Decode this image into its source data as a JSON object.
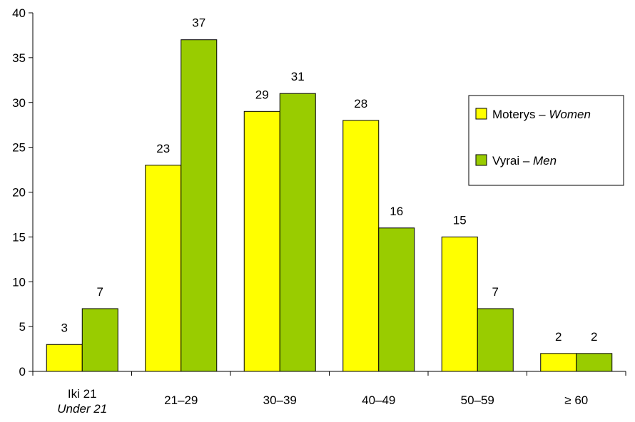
{
  "chart_data": {
    "type": "bar",
    "categories": [
      {
        "label": "Iki 21",
        "sublabel": "Under 21"
      },
      {
        "label": "21–29",
        "sublabel": ""
      },
      {
        "label": "30–39",
        "sublabel": ""
      },
      {
        "label": "40–49",
        "sublabel": ""
      },
      {
        "label": "50–59",
        "sublabel": ""
      },
      {
        "label": "≥ 60",
        "sublabel": ""
      }
    ],
    "series": [
      {
        "name": "Moterys",
        "name_en": "Women",
        "color": "#ffff00",
        "values": [
          3,
          23,
          29,
          28,
          15,
          2
        ]
      },
      {
        "name": "Vyrai",
        "name_en": "Men",
        "color": "#99cc00",
        "values": [
          7,
          37,
          31,
          16,
          7,
          2
        ]
      }
    ],
    "legend_separator": "–",
    "ylim": [
      0,
      40
    ],
    "yticks": [
      0,
      5,
      10,
      15,
      20,
      25,
      30,
      35,
      40
    ],
    "grid": false,
    "legend_position": "right",
    "data_labels": true,
    "xlabel": "",
    "ylabel": "",
    "title": ""
  }
}
